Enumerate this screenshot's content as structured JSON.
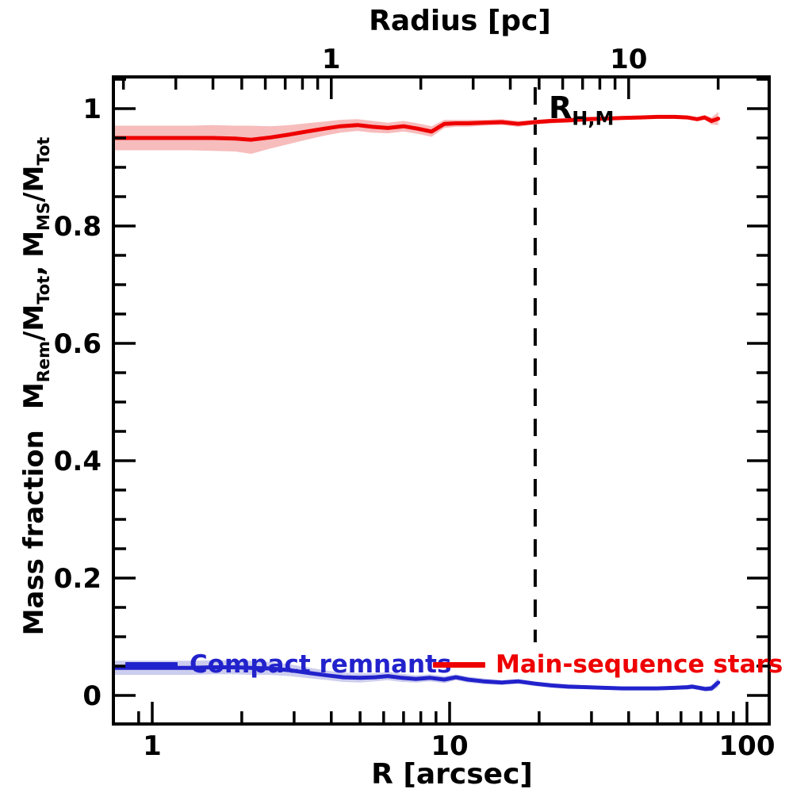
{
  "chart_data": {
    "type": "line",
    "x_scale": "log",
    "x_unit_bottom": "arcsec",
    "x_unit_top": "pc",
    "arcsec_per_pc": 4.0,
    "x_range_arcsec": [
      0.74,
      119
    ],
    "y_range": [
      -0.049,
      1.054
    ],
    "grid": "off",
    "axes": {
      "top": {
        "title": "Radius [pc]",
        "tick_values_pc": [
          1,
          10
        ],
        "tick_labels": [
          "1",
          "10"
        ]
      },
      "bottom": {
        "title": "R [arcsec]",
        "tick_values_arcsec": [
          1,
          10,
          100
        ],
        "tick_labels": [
          "1",
          "10",
          "100"
        ]
      },
      "left": {
        "tick_values": [
          1,
          0.8,
          0.6,
          0.4,
          0.2,
          0
        ],
        "tick_labels": [
          "1",
          "0.8",
          "0.6",
          "0.4",
          "0.2",
          "0"
        ],
        "minor_tick_step": 0.05
      }
    },
    "ylabel": {
      "prefix": "Mass fraction",
      "m": "M",
      "sub_rem": "Rem",
      "slash_m": "/M",
      "sub_tot": "Tot",
      "comma": ","
    },
    "annotation": {
      "label": "R",
      "sublabel": "H,M",
      "r_arcsec": 19.4,
      "line_style": "dashed",
      "line_color": "#000000"
    },
    "series": [
      {
        "name": "Main-sequence stars",
        "color": "#ee0000",
        "band_color": "#f7bcbc",
        "x": [
          0.75,
          0.9,
          1.1,
          1.35,
          1.6,
          1.9,
          2.15,
          2.5,
          2.9,
          3.3,
          3.8,
          4.3,
          4.9,
          5.5,
          6.2,
          7.0,
          7.8,
          8.7,
          9.6,
          10.5,
          11.5,
          13,
          15,
          17,
          19.4,
          22,
          25,
          29,
          33,
          38,
          44,
          50,
          57,
          63,
          68,
          72,
          76,
          80
        ],
        "y": [
          0.95,
          0.95,
          0.95,
          0.95,
          0.95,
          0.949,
          0.947,
          0.951,
          0.956,
          0.961,
          0.966,
          0.97,
          0.972,
          0.969,
          0.967,
          0.97,
          0.966,
          0.961,
          0.974,
          0.975,
          0.975,
          0.976,
          0.977,
          0.974,
          0.977,
          0.979,
          0.98,
          0.982,
          0.983,
          0.984,
          0.985,
          0.986,
          0.986,
          0.985,
          0.982,
          0.985,
          0.979,
          0.983
        ],
        "band_halfwidth": [
          0.021,
          0.021,
          0.021,
          0.021,
          0.022,
          0.022,
          0.024,
          0.019,
          0.016,
          0.014,
          0.012,
          0.011,
          0.01,
          0.01,
          0.009,
          0.009,
          0.009,
          0.009,
          0.007,
          0.006,
          0.006,
          0.005,
          0.005,
          0.005,
          0.004,
          0.004,
          0.004,
          0.004,
          0.003,
          0.003,
          0.003,
          0.003,
          0.003,
          0.003,
          0.003,
          0.004,
          0.006,
          0.011
        ]
      },
      {
        "name": "Compact remnants",
        "color": "#2222cc",
        "band_color": "#cdcdef",
        "x": [
          0.75,
          0.9,
          1.1,
          1.35,
          1.6,
          1.9,
          2.15,
          2.5,
          2.9,
          3.4,
          3.9,
          4.4,
          5.0,
          5.6,
          6.2,
          6.9,
          7.7,
          8.6,
          9.6,
          10.5,
          11.5,
          13,
          15,
          17,
          19.4,
          22,
          25,
          29,
          33,
          38,
          44,
          50,
          57,
          63,
          65.5,
          69,
          72.5,
          76,
          80
        ],
        "y": [
          0.047,
          0.047,
          0.047,
          0.047,
          0.048,
          0.048,
          0.047,
          0.046,
          0.043,
          0.038,
          0.034,
          0.031,
          0.03,
          0.031,
          0.033,
          0.03,
          0.028,
          0.03,
          0.027,
          0.031,
          0.027,
          0.024,
          0.022,
          0.024,
          0.02,
          0.017,
          0.015,
          0.014,
          0.013,
          0.012,
          0.012,
          0.012,
          0.013,
          0.014,
          0.015,
          0.013,
          0.011,
          0.012,
          0.022
        ],
        "band_halfwidth": [
          0.012,
          0.012,
          0.012,
          0.012,
          0.012,
          0.012,
          0.012,
          0.011,
          0.01,
          0.009,
          0.008,
          0.008,
          0.008,
          0.007,
          0.007,
          0.007,
          0.006,
          0.006,
          0.006,
          0.005,
          0.005,
          0.005,
          0.004,
          0.004,
          0.004,
          0.004,
          0.004,
          0.003,
          0.003,
          0.003,
          0.003,
          0.003,
          0.003,
          0.004,
          0.004,
          0.004,
          0.004,
          0.005,
          0.008
        ]
      }
    ],
    "legend": {
      "items": [
        {
          "label": "Compact remnants",
          "color": "#2222cc"
        },
        {
          "label": "Main-sequence stars",
          "color": "#ee0000"
        }
      ]
    }
  }
}
